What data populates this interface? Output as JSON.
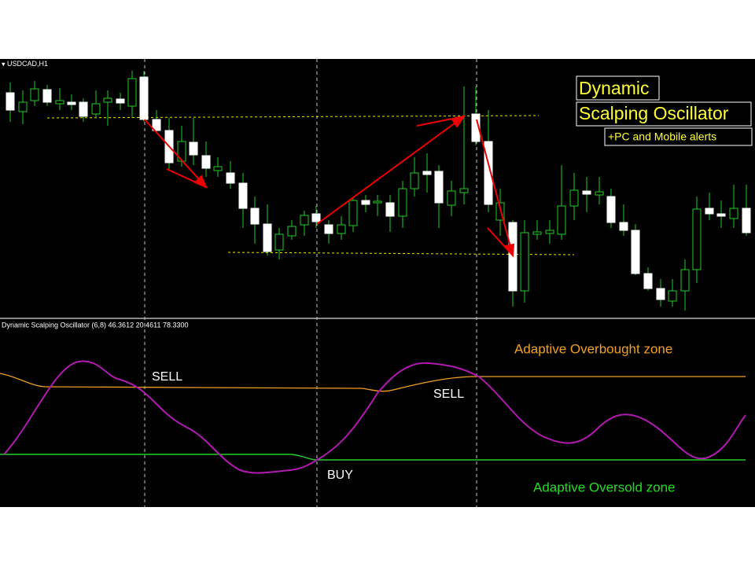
{
  "header": {
    "symbol": "USDCAD,H1"
  },
  "overlay": {
    "title_line1": "Dynamic",
    "title_line2": "Scalping Oscillator",
    "subtitle": "+PC and Mobile alerts"
  },
  "indicator": {
    "label": "Dynamic Scalping Oscillator (6,8) 46.3612 20.4611 78.3300",
    "overbought_label": "Adaptive Overbought zone",
    "oversold_label": "Adaptive Oversold zone",
    "signals": [
      "SELL",
      "SELL",
      "BUY"
    ]
  }
}
